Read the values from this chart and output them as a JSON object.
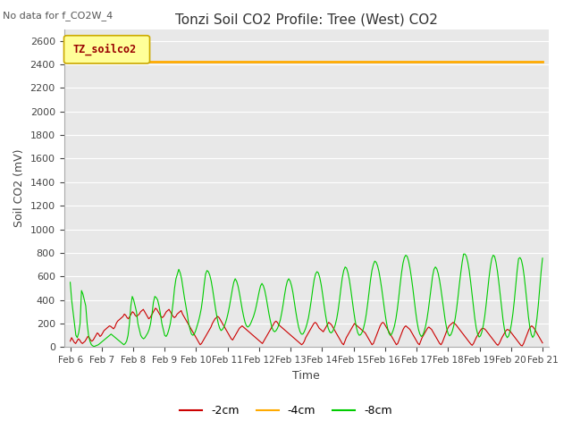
{
  "title": "Tonzi Soil CO2 Profile: Tree (West) CO2",
  "no_data_label": "No data for f_CO2W_4",
  "ylabel": "Soil CO2 (mV)",
  "xlabel": "Time",
  "legend_box_label": "TZ_soilco2",
  "ylim": [
    0,
    2700
  ],
  "yticks": [
    0,
    200,
    400,
    600,
    800,
    1000,
    1200,
    1400,
    1600,
    1800,
    2000,
    2200,
    2400,
    2600
  ],
  "xstart": 6,
  "xend": 21,
  "xtick_labels": [
    "Feb 6",
    "Feb 7",
    "Feb 8",
    "Feb 9",
    "Feb 10",
    "Feb 11",
    "Feb 12",
    "Feb 13",
    "Feb 14",
    "Feb 15",
    "Feb 16",
    "Feb 17",
    "Feb 18",
    "Feb 19",
    "Feb 20",
    "Feb 21"
  ],
  "line_colors": {
    "neg2cm": "#cc0000",
    "neg4cm": "#ffaa00",
    "neg8cm": "#00cc00"
  },
  "legend_labels": [
    "-2cm",
    "-4cm",
    "-8cm"
  ],
  "flat_4cm_value": 2420,
  "plot_bg_color": "#e8e8e8",
  "fig_bg_color": "#ffffff",
  "grid_color": "#ffffff",
  "legend_box_color": "#ffff99",
  "legend_box_edge": "#ccaa00",
  "title_fontsize": 11,
  "axis_label_fontsize": 9,
  "tick_fontsize": 8,
  "red_data": [
    50,
    80,
    60,
    40,
    30,
    50,
    70,
    60,
    40,
    30,
    40,
    50,
    70,
    90,
    80,
    60,
    50,
    60,
    80,
    100,
    120,
    110,
    90,
    100,
    120,
    140,
    150,
    160,
    170,
    180,
    175,
    165,
    155,
    170,
    200,
    220,
    230,
    240,
    250,
    260,
    280,
    270,
    250,
    240,
    260,
    280,
    300,
    290,
    270,
    260,
    270,
    280,
    300,
    310,
    320,
    300,
    280,
    260,
    240,
    250,
    270,
    290,
    310,
    330,
    320,
    300,
    280,
    260,
    250,
    260,
    280,
    300,
    310,
    320,
    300,
    280,
    260,
    250,
    260,
    280,
    290,
    300,
    310,
    280,
    260,
    240,
    220,
    200,
    180,
    160,
    140,
    120,
    100,
    80,
    60,
    40,
    20,
    30,
    50,
    70,
    90,
    110,
    130,
    150,
    170,
    200,
    220,
    240,
    250,
    260,
    250,
    230,
    210,
    190,
    170,
    150,
    130,
    110,
    90,
    70,
    60,
    80,
    100,
    120,
    140,
    160,
    170,
    180,
    170,
    160,
    150,
    140,
    130,
    120,
    110,
    100,
    90,
    80,
    70,
    60,
    50,
    40,
    30,
    50,
    70,
    90,
    110,
    130,
    150,
    170,
    190,
    210,
    220,
    210,
    190,
    180,
    170,
    160,
    150,
    140,
    130,
    120,
    110,
    100,
    90,
    80,
    70,
    60,
    50,
    40,
    30,
    20,
    30,
    50,
    80,
    100,
    120,
    140,
    160,
    180,
    200,
    210,
    200,
    180,
    160,
    150,
    140,
    130,
    150,
    170,
    190,
    210,
    200,
    190,
    170,
    150,
    130,
    110,
    90,
    70,
    50,
    30,
    20,
    50,
    80,
    100,
    120,
    140,
    160,
    180,
    200,
    190,
    180,
    170,
    160,
    150,
    140,
    130,
    120,
    100,
    80,
    60,
    40,
    20,
    30,
    60,
    90,
    120,
    150,
    180,
    200,
    210,
    200,
    180,
    160,
    140,
    120,
    100,
    80,
    60,
    40,
    20,
    30,
    60,
    90,
    120,
    150,
    170,
    180,
    170,
    160,
    150,
    130,
    110,
    90,
    70,
    50,
    30,
    20,
    50,
    80,
    100,
    120,
    140,
    160,
    170,
    160,
    150,
    130,
    110,
    90,
    70,
    50,
    30,
    20,
    40,
    70,
    100,
    130,
    160,
    180,
    190,
    200,
    210,
    200,
    190,
    175,
    160,
    145,
    130,
    115,
    100,
    85,
    70,
    55,
    40,
    25,
    15,
    30,
    55,
    80,
    100,
    120,
    140,
    155,
    160,
    155,
    145,
    130,
    115,
    100,
    85,
    70,
    55,
    40,
    25,
    15,
    30,
    55,
    80,
    100,
    120,
    140,
    150,
    145,
    135,
    120,
    105,
    90,
    75,
    60,
    45,
    30,
    15,
    10,
    30,
    60,
    90,
    120,
    150,
    170,
    180,
    170,
    155,
    135,
    115,
    95,
    75,
    55,
    35
  ],
  "green_data": [
    550,
    400,
    300,
    200,
    100,
    80,
    120,
    200,
    480,
    450,
    400,
    350,
    200,
    100,
    50,
    20,
    10,
    5,
    10,
    15,
    20,
    30,
    40,
    50,
    60,
    70,
    80,
    90,
    100,
    110,
    100,
    90,
    80,
    70,
    60,
    50,
    40,
    30,
    20,
    30,
    50,
    100,
    200,
    350,
    430,
    400,
    350,
    300,
    200,
    150,
    100,
    80,
    70,
    80,
    100,
    120,
    150,
    200,
    280,
    380,
    430,
    420,
    400,
    350,
    280,
    200,
    150,
    100,
    90,
    110,
    150,
    200,
    280,
    380,
    500,
    580,
    620,
    660,
    630,
    580,
    500,
    420,
    350,
    280,
    200,
    150,
    110,
    100,
    110,
    140,
    180,
    220,
    270,
    330,
    420,
    530,
    620,
    650,
    640,
    610,
    560,
    490,
    410,
    330,
    260,
    200,
    160,
    140,
    150,
    170,
    200,
    240,
    290,
    350,
    420,
    490,
    550,
    580,
    560,
    520,
    460,
    390,
    320,
    260,
    210,
    180,
    170,
    180,
    200,
    230,
    260,
    300,
    350,
    410,
    470,
    520,
    540,
    520,
    480,
    420,
    350,
    280,
    220,
    170,
    140,
    130,
    140,
    160,
    190,
    230,
    290,
    360,
    440,
    510,
    560,
    580,
    560,
    520,
    460,
    380,
    300,
    230,
    170,
    130,
    110,
    110,
    130,
    160,
    200,
    250,
    320,
    400,
    490,
    570,
    620,
    640,
    630,
    590,
    530,
    450,
    360,
    280,
    210,
    160,
    130,
    120,
    130,
    155,
    190,
    240,
    310,
    400,
    500,
    590,
    650,
    680,
    670,
    630,
    570,
    490,
    400,
    310,
    230,
    165,
    120,
    100,
    105,
    125,
    160,
    210,
    280,
    370,
    470,
    570,
    650,
    700,
    730,
    720,
    690,
    640,
    570,
    490,
    400,
    310,
    230,
    165,
    120,
    100,
    110,
    140,
    180,
    240,
    320,
    420,
    530,
    630,
    710,
    760,
    780,
    770,
    730,
    670,
    590,
    500,
    400,
    300,
    215,
    150,
    110,
    90,
    100,
    130,
    175,
    235,
    315,
    410,
    510,
    600,
    660,
    680,
    665,
    625,
    565,
    488,
    400,
    310,
    225,
    160,
    115,
    95,
    105,
    135,
    180,
    240,
    320,
    420,
    530,
    630,
    720,
    790,
    790,
    770,
    720,
    650,
    555,
    450,
    340,
    240,
    160,
    110,
    85,
    95,
    130,
    185,
    260,
    360,
    475,
    585,
    680,
    750,
    780,
    770,
    720,
    645,
    550,
    445,
    335,
    230,
    150,
    100,
    80,
    95,
    135,
    200,
    285,
    395,
    520,
    650,
    750,
    760,
    740,
    685,
    600,
    490,
    370,
    258,
    168,
    108,
    82,
    100,
    155,
    240,
    355,
    495,
    640,
    755
  ]
}
